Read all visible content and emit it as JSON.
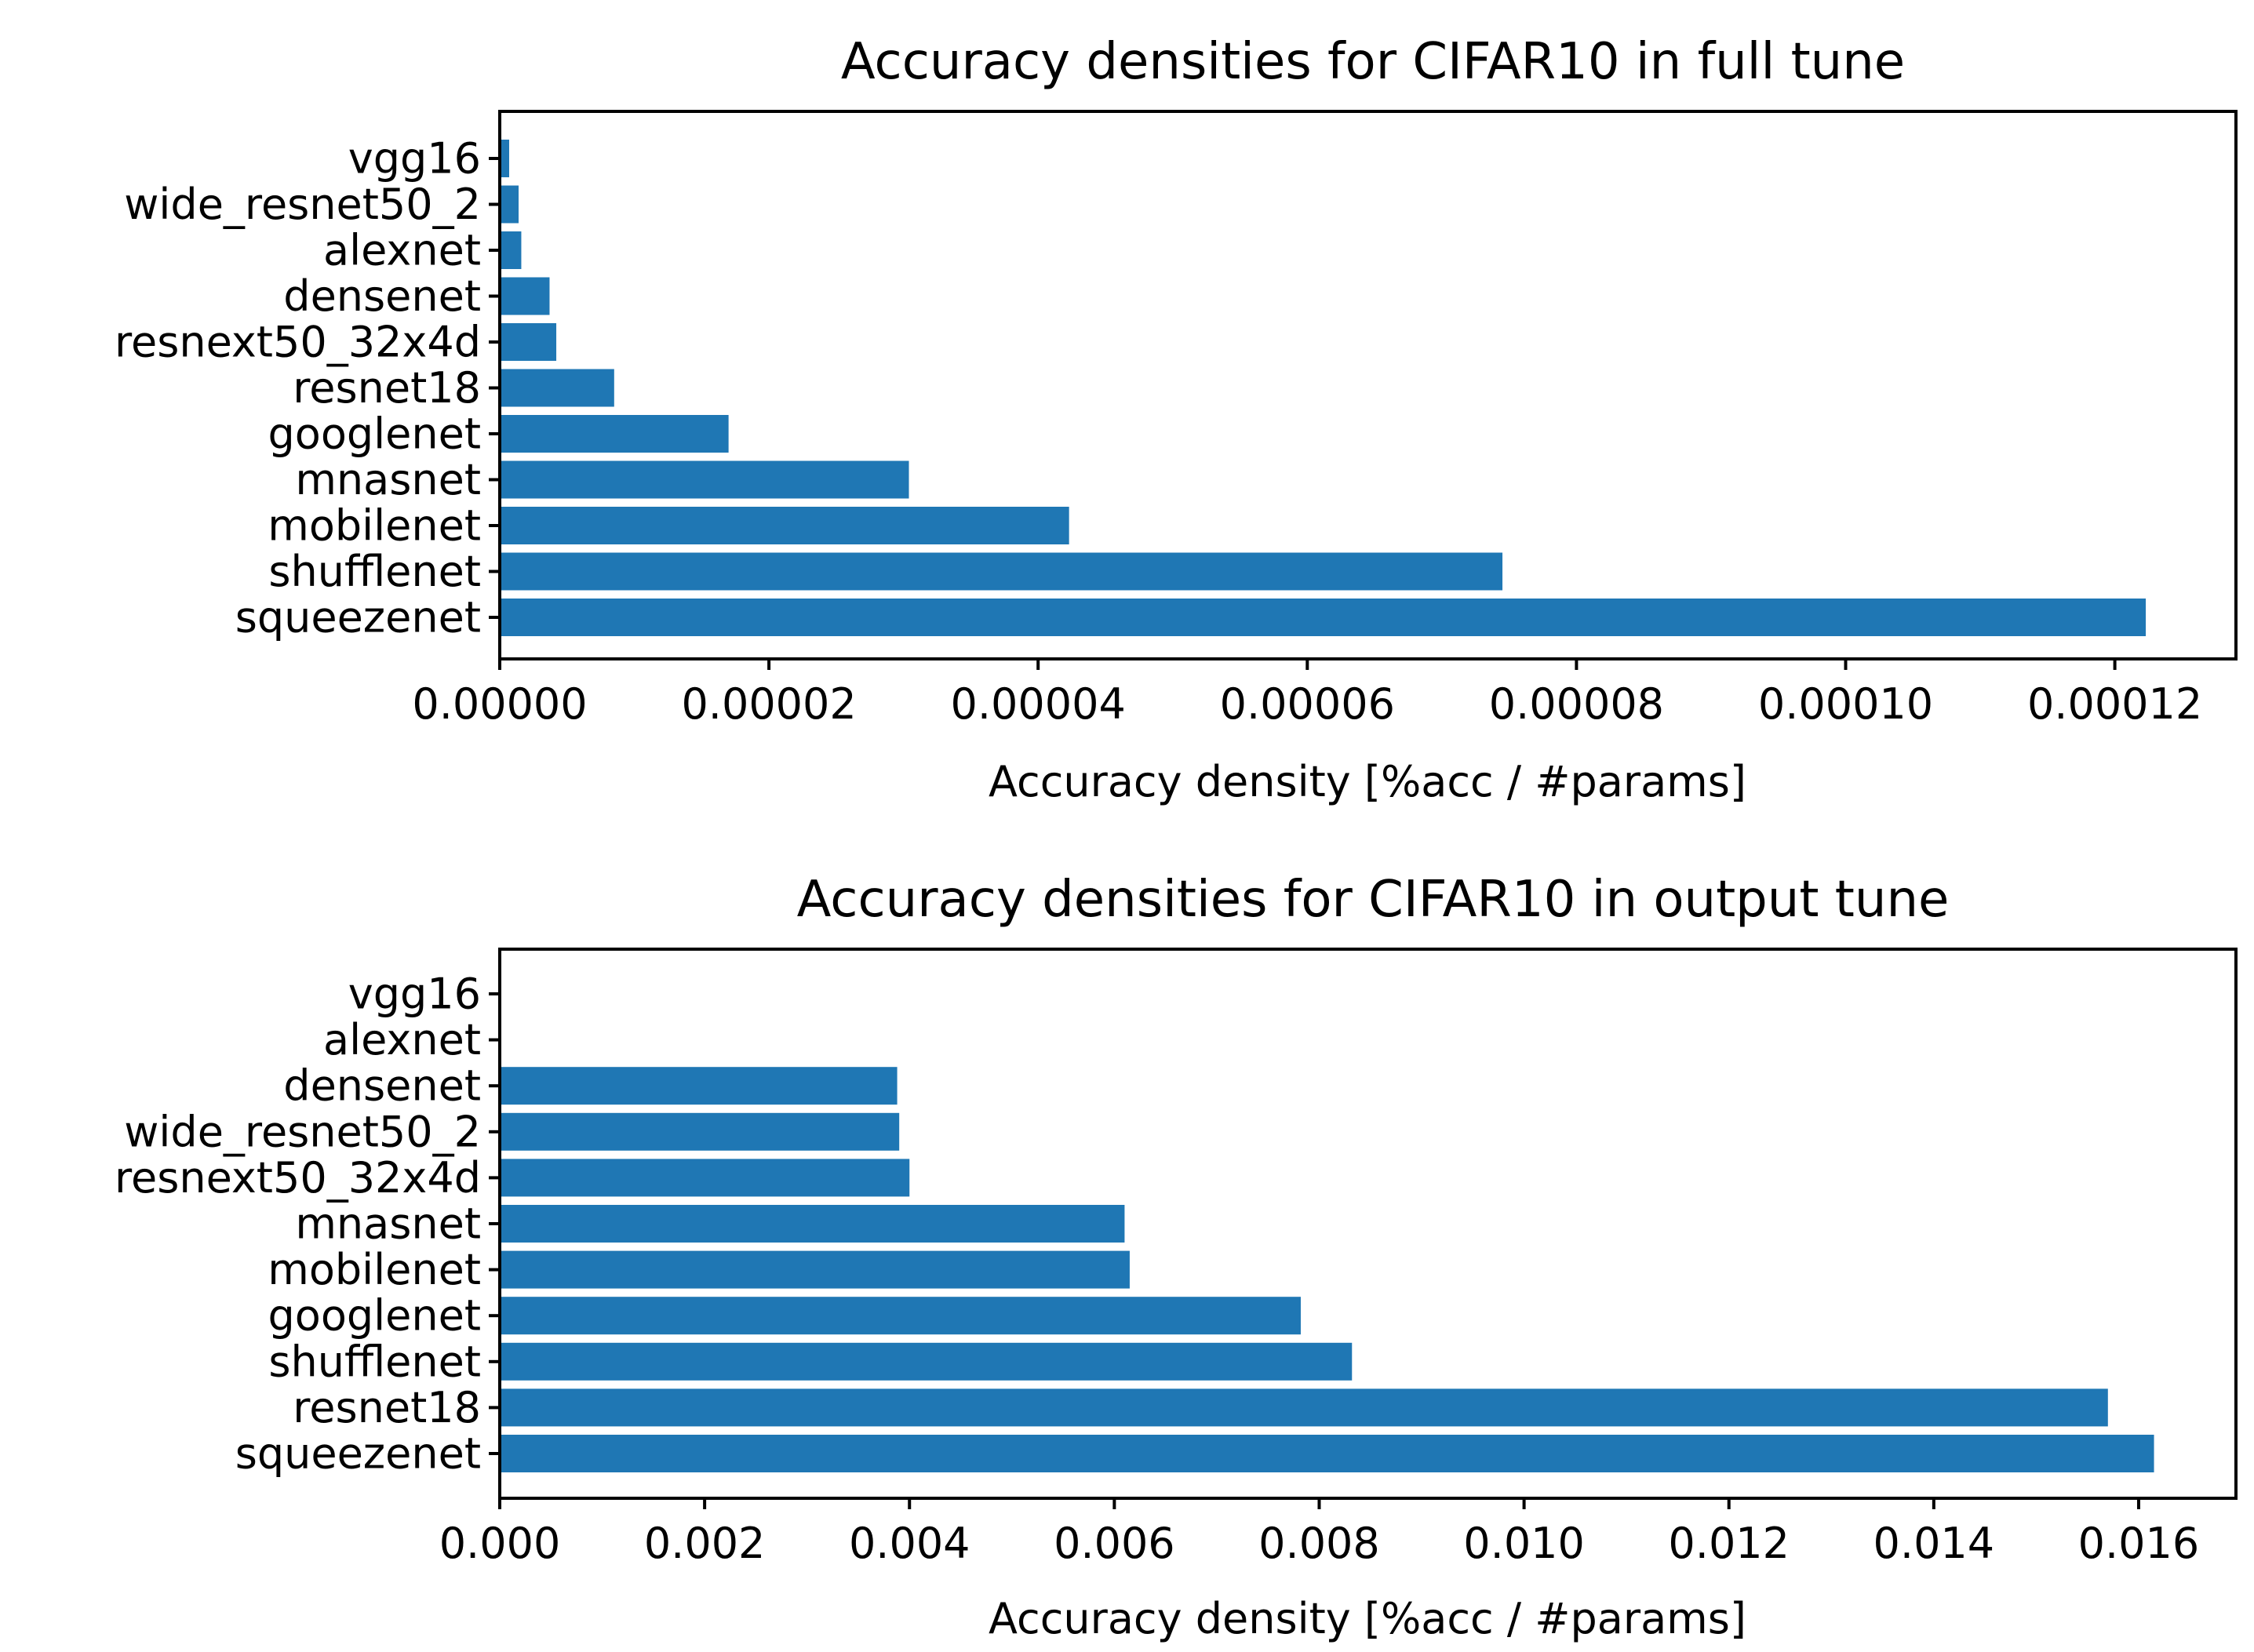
{
  "colors": {
    "bar": "#1f77b4",
    "axis": "#000000",
    "background": "#ffffff"
  },
  "chart_data": [
    {
      "type": "bar",
      "orientation": "horizontal",
      "title": "Accuracy densities for CIFAR10 in full tune",
      "xlabel": "Accuracy density [%acc / #params]",
      "ylabel": "",
      "categories": [
        "squeezenet",
        "shufflenet",
        "mobilenet",
        "mnasnet",
        "googlenet",
        "resnet18",
        "resnext50_32x4d",
        "densenet",
        "alexnet",
        "wide_resnet50_2",
        "vgg16"
      ],
      "values": [
        0.0001223,
        7.45e-05,
        4.23e-05,
        3.04e-05,
        1.7e-05,
        8.5e-06,
        4.2e-06,
        3.7e-06,
        1.6e-06,
        1.4e-06,
        7e-07
      ],
      "xlim": [
        0,
        0.000129
      ],
      "xticks": [
        0,
        2e-05,
        4e-05,
        6e-05,
        8e-05,
        0.0001,
        0.00012
      ],
      "xtick_labels": [
        "0.00000",
        "0.00002",
        "0.00004",
        "0.00006",
        "0.00008",
        "0.00010",
        "0.00012"
      ],
      "grid": false,
      "legend": false
    },
    {
      "type": "bar",
      "orientation": "horizontal",
      "title": "Accuracy densities for CIFAR10 in output tune",
      "xlabel": "Accuracy density [%acc / #params]",
      "ylabel": "",
      "categories": [
        "squeezenet",
        "resnet18",
        "shufflenet",
        "googlenet",
        "mobilenet",
        "mnasnet",
        "resnext50_32x4d",
        "wide_resnet50_2",
        "densenet",
        "alexnet",
        "vgg16"
      ],
      "values": [
        0.01615,
        0.0157,
        0.00832,
        0.00782,
        0.00615,
        0.0061,
        0.004,
        0.0039,
        0.00388,
        0.0,
        0.0
      ],
      "xlim": [
        0,
        0.01695
      ],
      "xticks": [
        0,
        0.002,
        0.004,
        0.006,
        0.008,
        0.01,
        0.012,
        0.014,
        0.016
      ],
      "xtick_labels": [
        "0.000",
        "0.002",
        "0.004",
        "0.006",
        "0.008",
        "0.010",
        "0.012",
        "0.014",
        "0.016"
      ],
      "grid": false,
      "legend": false
    }
  ]
}
